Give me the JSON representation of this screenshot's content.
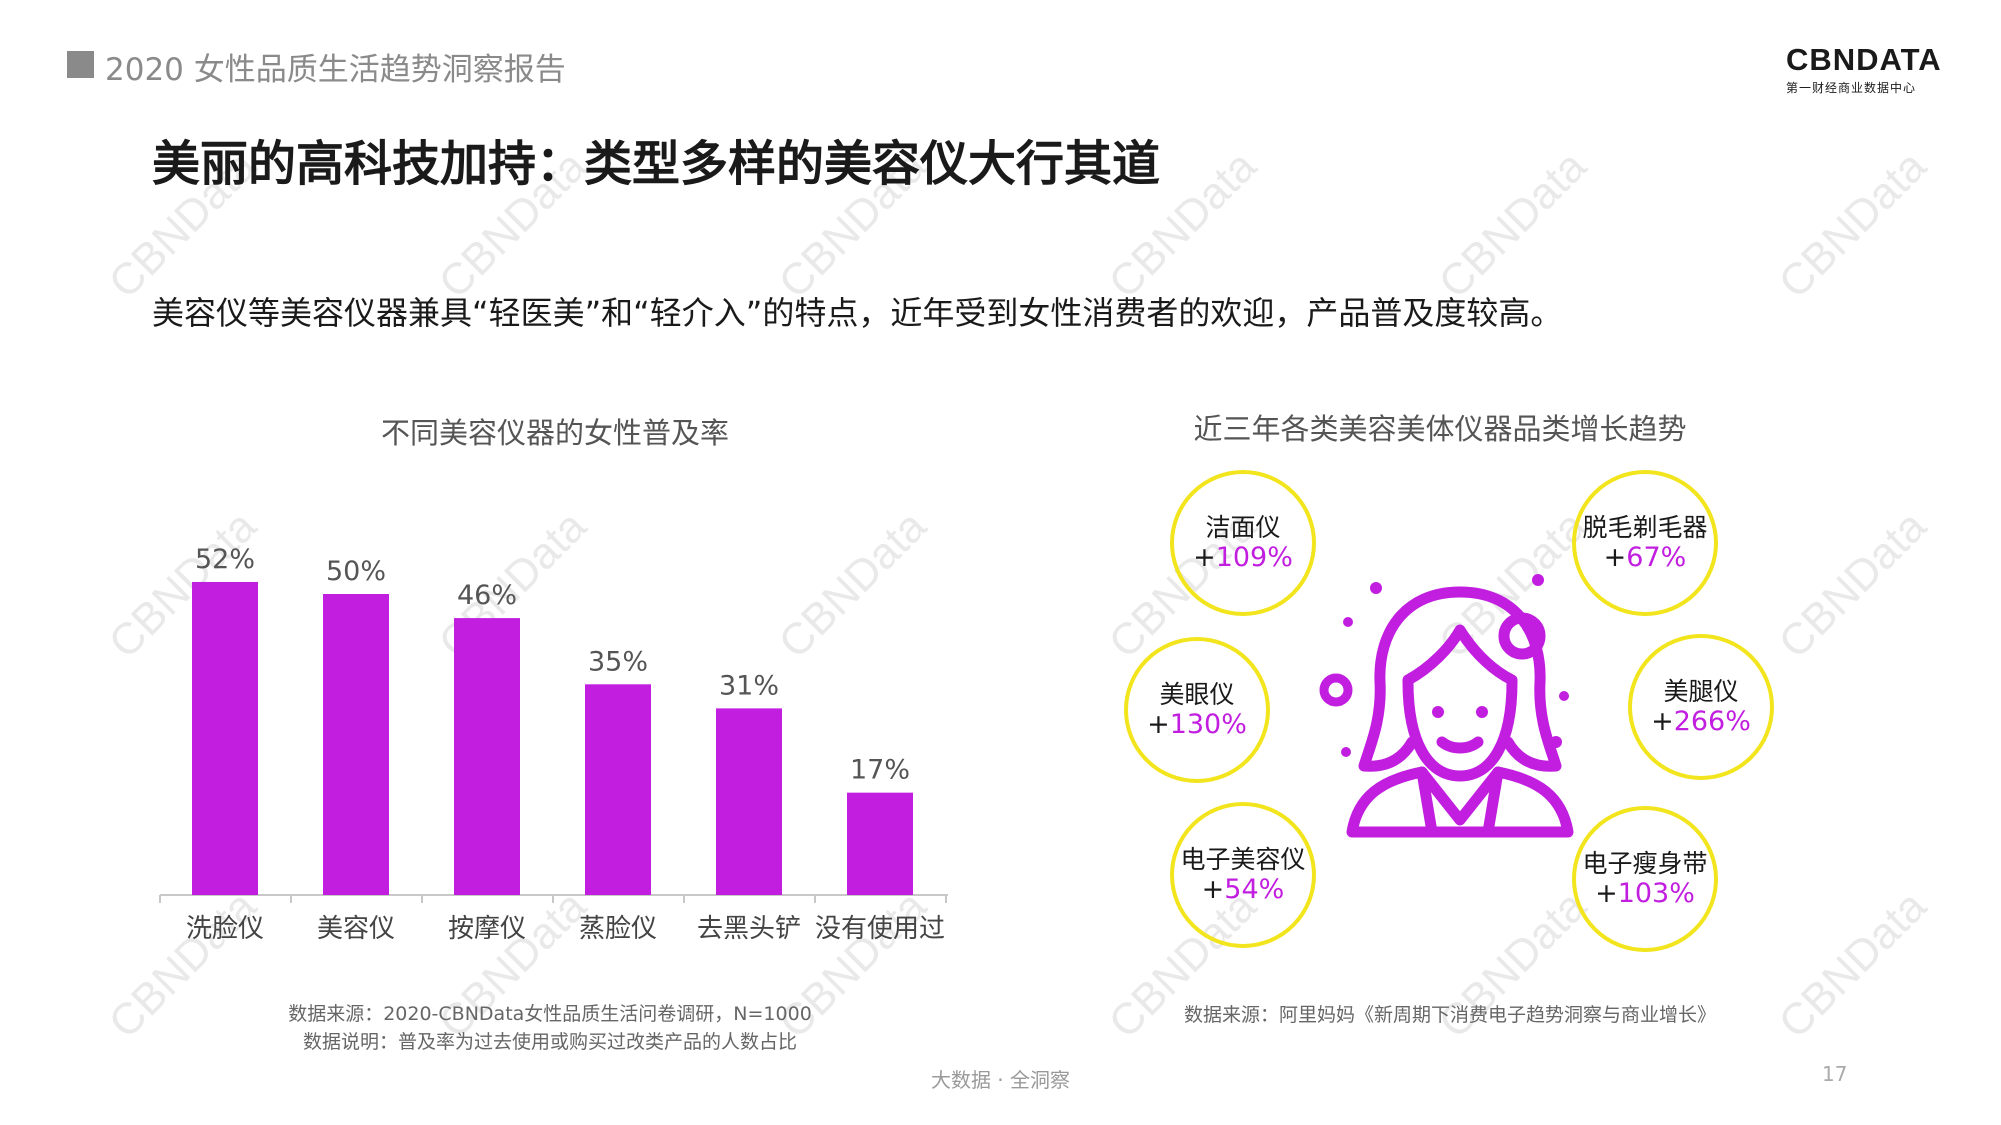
{
  "header": {
    "report_title": "2020 女性品质生活趋势洞察报告"
  },
  "logo": {
    "main": "CBNDATA",
    "sub": "第一财经商业数据中心"
  },
  "watermark_text": "CBNData",
  "page_title": "美丽的高科技加持：类型多样的美容仪大行其道",
  "subtitle": "美容仪等美容仪器兼具“轻医美”和“轻介入”的特点，近年受到女性消费者的欢迎，产品普及度较高。",
  "colors": {
    "bar": "#c21ee0",
    "bubble_border": "#f2e51d",
    "accent": "#c21ee0"
  },
  "left_chart": {
    "title": "不同美容仪器的女性普及率",
    "source": "数据来源：2020-CBNData女性品质生活问卷调研，N=1000",
    "note": "数据说明：普及率为过去使用或购买过改类产品的人数占比"
  },
  "chart_data": {
    "type": "bar",
    "title": "不同美容仪器的女性普及率",
    "categories": [
      "洗脸仪",
      "美容仪",
      "按摩仪",
      "蒸脸仪",
      "去黑头铲",
      "没有使用过"
    ],
    "values": [
      52,
      50,
      46,
      35,
      31,
      17
    ],
    "value_labels": [
      "52%",
      "50%",
      "46%",
      "35%",
      "31%",
      "17%"
    ],
    "unit": "%",
    "ylim": [
      0,
      60
    ],
    "grid": false,
    "legend": "none"
  },
  "right_chart": {
    "title": "近三年各类美容美体仪器品类增长趋势",
    "source": "数据来源：阿里妈妈《新周期下消费电子趋势洞察与商业增长》",
    "icon": "woman-portrait-icon",
    "bubbles": [
      {
        "label": "洁面仪",
        "prefix": "+",
        "value": "109%"
      },
      {
        "label": "美眼仪",
        "prefix": "+",
        "value": "130%"
      },
      {
        "label": "电子美容仪",
        "prefix": "+",
        "value": "54%"
      },
      {
        "label": "脱毛剃毛器",
        "prefix": "+",
        "value": "67%"
      },
      {
        "label": "美腿仪",
        "prefix": "+",
        "value": "266%"
      },
      {
        "label": "电子瘦身带",
        "prefix": "+",
        "value": "103%"
      }
    ]
  },
  "footer": {
    "text": "大数据 · 全洞察",
    "page_number": "17"
  }
}
